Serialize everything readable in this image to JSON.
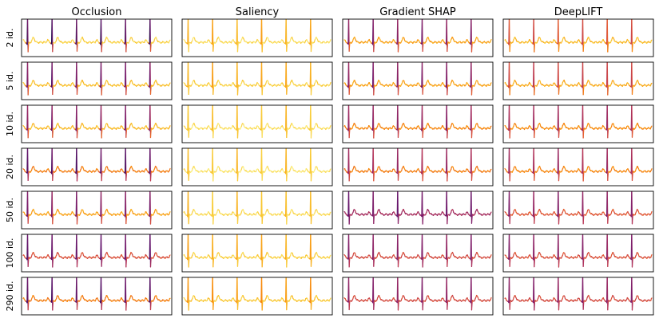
{
  "chart_data": {
    "type": "line",
    "description_of_grid": "rows are number of identities, columns are attribution methods",
    "columns": [
      "Occlusion",
      "Saliency",
      "Gradient SHAP",
      "DeepLIFT"
    ],
    "rows": [
      "2 id.",
      "5 id.",
      "10 id.",
      "20 id.",
      "50 id.",
      "100 id.",
      "290 id."
    ],
    "beats_per_panel": 6,
    "colormap": "inferno",
    "baseline_attribution": [
      [
        0.9,
        0.92,
        0.8,
        0.85
      ],
      [
        0.86,
        0.9,
        0.8,
        0.82
      ],
      [
        0.85,
        0.93,
        0.74,
        0.75
      ],
      [
        0.72,
        0.94,
        0.72,
        0.74
      ],
      [
        0.8,
        0.92,
        0.45,
        0.62
      ],
      [
        0.6,
        0.9,
        0.58,
        0.6
      ],
      [
        0.72,
        0.88,
        0.58,
        0.58
      ]
    ],
    "peak_attribution": [
      [
        0.15,
        0.8,
        0.3,
        0.55
      ],
      [
        0.25,
        0.8,
        0.3,
        0.5
      ],
      [
        0.3,
        0.85,
        0.35,
        0.4
      ],
      [
        0.2,
        0.85,
        0.4,
        0.4
      ],
      [
        0.3,
        0.85,
        0.3,
        0.35
      ],
      [
        0.25,
        0.8,
        0.35,
        0.35
      ],
      [
        0.2,
        0.75,
        0.35,
        0.35
      ]
    ]
  }
}
